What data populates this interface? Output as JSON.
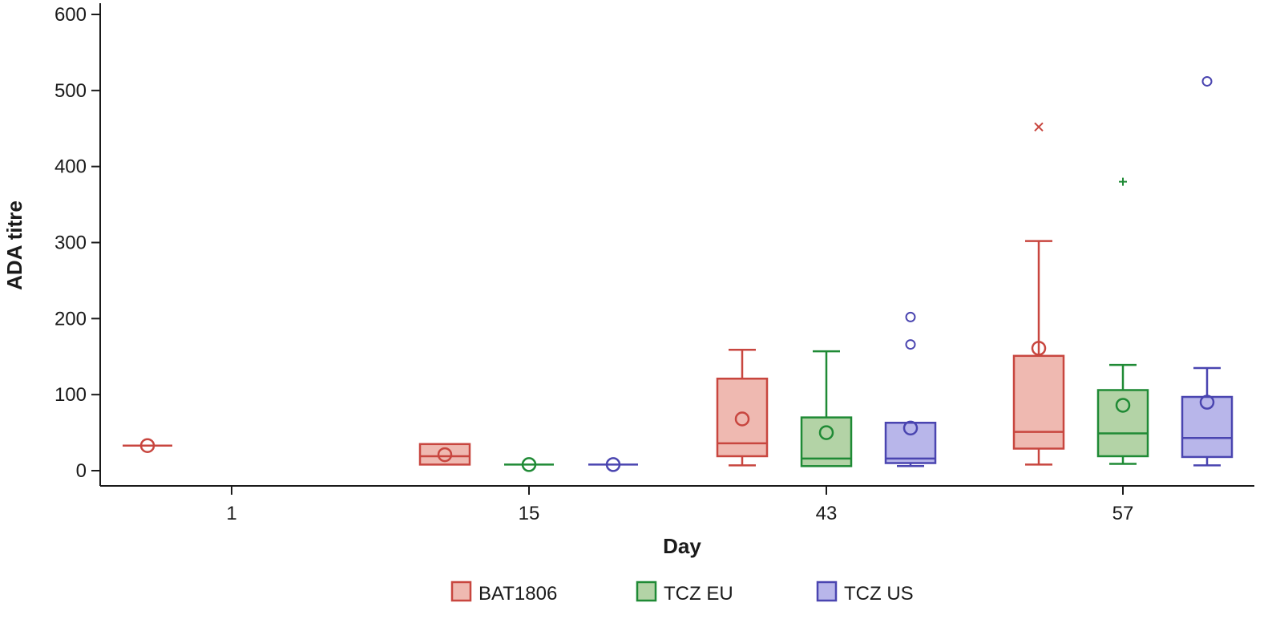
{
  "chart_data": {
    "type": "box",
    "title": "",
    "xlabel": "Day",
    "ylabel": "ADA titre",
    "ylim": [
      0,
      600
    ],
    "yticks": [
      0,
      100,
      200,
      300,
      400,
      500,
      600
    ],
    "categories": [
      "1",
      "15",
      "43",
      "57"
    ],
    "legend_position": "bottom",
    "series": [
      {
        "name": "BAT1806",
        "color": "#c8463f",
        "fill": "#efb9b1",
        "boxes": [
          {
            "day": "1",
            "min": 33,
            "q1": 33,
            "median": 33,
            "q3": 33,
            "max": 33,
            "mean": 33,
            "outliers": []
          },
          {
            "day": "15",
            "min": 8,
            "q1": 8,
            "median": 19,
            "q3": 35,
            "max": 35,
            "mean": 21,
            "outliers": []
          },
          {
            "day": "43",
            "min": 7,
            "q1": 19,
            "median": 36,
            "q3": 121,
            "max": 159,
            "mean": 68,
            "outliers": []
          },
          {
            "day": "57",
            "min": 8,
            "q1": 29,
            "median": 51,
            "q3": 151,
            "max": 302,
            "mean": 161,
            "outliers": [
              {
                "value": 452,
                "marker": "x"
              }
            ]
          }
        ]
      },
      {
        "name": "TCZ EU",
        "color": "#1f8a35",
        "fill": "#b3d3a6",
        "boxes": [
          {
            "day": "15",
            "min": 8,
            "q1": 8,
            "median": 8,
            "q3": 8,
            "max": 8,
            "mean": 8,
            "outliers": []
          },
          {
            "day": "43",
            "min": 6,
            "q1": 6,
            "median": 16,
            "q3": 70,
            "max": 157,
            "mean": 50,
            "outliers": []
          },
          {
            "day": "57",
            "min": 9,
            "q1": 19,
            "median": 49,
            "q3": 106,
            "max": 139,
            "mean": 86,
            "outliers": [
              {
                "value": 380,
                "marker": "+"
              }
            ]
          }
        ]
      },
      {
        "name": "TCZ US",
        "color": "#4a45b0",
        "fill": "#b8b6ea",
        "boxes": [
          {
            "day": "15",
            "min": 8,
            "q1": 8,
            "median": 8,
            "q3": 8,
            "max": 8,
            "mean": 8,
            "outliers": []
          },
          {
            "day": "43",
            "min": 6,
            "q1": 10,
            "median": 16,
            "q3": 63,
            "max": 63,
            "mean": 56,
            "outliers": [
              {
                "value": 166,
                "marker": "o"
              },
              {
                "value": 202,
                "marker": "o"
              }
            ]
          },
          {
            "day": "57",
            "min": 7,
            "q1": 18,
            "median": 43,
            "q3": 97,
            "max": 135,
            "mean": 90,
            "outliers": [
              {
                "value": 512,
                "marker": "o"
              }
            ]
          }
        ]
      }
    ]
  }
}
